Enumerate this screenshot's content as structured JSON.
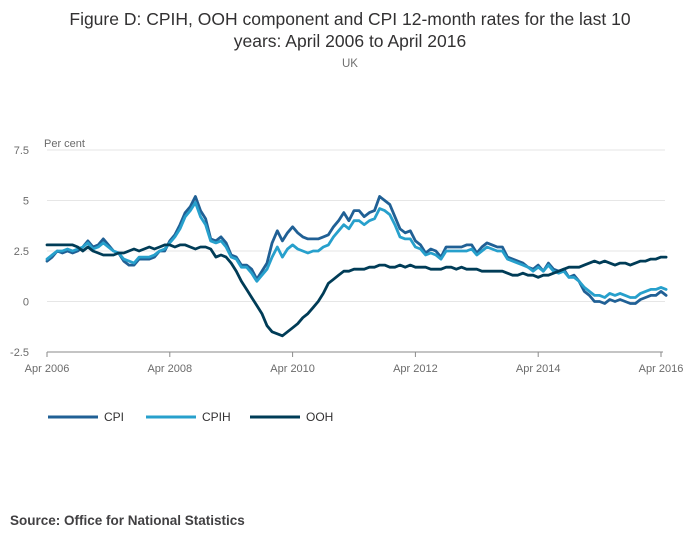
{
  "page": {
    "title_line1": "Figure D: CPIH, OOH component and CPI 12-month rates for the last 10",
    "title_line2": "years: April 2006 to April 2016",
    "subtitle": "UK",
    "source": "Source: Office for National Statistics"
  },
  "chart_data": {
    "type": "line",
    "title": "Figure D: CPIH, OOH component and CPI 12-month rates for the last 10 years: April 2006 to April 2016",
    "subtitle": "UK",
    "ylabel": "Per cent",
    "xlabel": "",
    "ylim": [
      -2.5,
      7.5
    ],
    "xlim": [
      "2006-04",
      "2016-04"
    ],
    "y_ticks": [
      -2.5,
      0,
      2.5,
      5,
      7.5
    ],
    "y_tick_labels": [
      "-2.5",
      "0",
      "2.5",
      "5",
      "7.5"
    ],
    "x_ticks": [
      "2006-04",
      "2008-04",
      "2010-04",
      "2012-04",
      "2014-04",
      "2016-04"
    ],
    "x_tick_labels": [
      "Apr 2006",
      "Apr 2008",
      "Apr 2010",
      "Apr 2012",
      "Apr 2014",
      "Apr 2016"
    ],
    "grid": "horizontal",
    "legend_position": "bottom-left",
    "start_month": "2006-04",
    "series": [
      {
        "name": "CPI",
        "color": "#206095",
        "values": [
          2.0,
          2.2,
          2.5,
          2.4,
          2.5,
          2.4,
          2.5,
          2.7,
          3.0,
          2.7,
          2.8,
          3.1,
          2.8,
          2.5,
          2.4,
          2.0,
          1.8,
          1.8,
          2.1,
          2.1,
          2.1,
          2.2,
          2.5,
          2.5,
          3.0,
          3.3,
          3.8,
          4.4,
          4.7,
          5.2,
          4.5,
          4.1,
          3.1,
          3.0,
          3.2,
          2.9,
          2.3,
          2.2,
          1.8,
          1.8,
          1.6,
          1.1,
          1.5,
          1.9,
          2.9,
          3.5,
          3.0,
          3.4,
          3.7,
          3.4,
          3.2,
          3.1,
          3.1,
          3.1,
          3.2,
          3.3,
          3.7,
          4.0,
          4.4,
          4.0,
          4.5,
          4.5,
          4.2,
          4.4,
          4.5,
          5.2,
          5.0,
          4.8,
          4.2,
          3.6,
          3.4,
          3.5,
          3.0,
          2.8,
          2.4,
          2.6,
          2.5,
          2.2,
          2.7,
          2.7,
          2.7,
          2.7,
          2.8,
          2.8,
          2.4,
          2.7,
          2.9,
          2.8,
          2.7,
          2.7,
          2.2,
          2.1,
          2.0,
          1.9,
          1.7,
          1.6,
          1.8,
          1.5,
          1.9,
          1.6,
          1.5,
          1.6,
          1.2,
          1.3,
          1.0,
          0.5,
          0.3,
          0.0,
          0.0,
          -0.1,
          0.1,
          0.0,
          0.1,
          0.0,
          -0.1,
          -0.1,
          0.1,
          0.2,
          0.3,
          0.3,
          0.5,
          0.3
        ]
      },
      {
        "name": "CPIH",
        "color": "#27a0cc",
        "values": [
          2.1,
          2.3,
          2.5,
          2.5,
          2.6,
          2.5,
          2.6,
          2.7,
          2.9,
          2.6,
          2.7,
          2.9,
          2.7,
          2.5,
          2.4,
          2.1,
          2.0,
          1.9,
          2.2,
          2.2,
          2.2,
          2.3,
          2.5,
          2.6,
          2.9,
          3.2,
          3.6,
          4.2,
          4.5,
          4.9,
          4.2,
          3.8,
          3.0,
          2.9,
          3.0,
          2.7,
          2.2,
          2.1,
          1.7,
          1.7,
          1.4,
          1.0,
          1.3,
          1.6,
          2.2,
          2.7,
          2.2,
          2.6,
          2.8,
          2.6,
          2.5,
          2.4,
          2.5,
          2.5,
          2.7,
          2.8,
          3.2,
          3.5,
          3.8,
          3.6,
          4.0,
          4.0,
          3.8,
          4.0,
          4.1,
          4.6,
          4.5,
          4.3,
          3.8,
          3.2,
          3.1,
          3.1,
          2.7,
          2.6,
          2.3,
          2.4,
          2.3,
          2.1,
          2.5,
          2.5,
          2.5,
          2.5,
          2.5,
          2.6,
          2.3,
          2.5,
          2.7,
          2.6,
          2.5,
          2.5,
          2.1,
          2.0,
          1.9,
          1.8,
          1.7,
          1.5,
          1.7,
          1.5,
          1.8,
          1.5,
          1.4,
          1.5,
          1.2,
          1.2,
          1.0,
          0.7,
          0.5,
          0.3,
          0.3,
          0.2,
          0.4,
          0.3,
          0.4,
          0.3,
          0.2,
          0.2,
          0.4,
          0.5,
          0.6,
          0.6,
          0.7,
          0.6
        ]
      },
      {
        "name": "OOH",
        "color": "#003c57",
        "values": [
          2.8,
          2.8,
          2.8,
          2.8,
          2.8,
          2.8,
          2.7,
          2.5,
          2.7,
          2.5,
          2.4,
          2.3,
          2.3,
          2.3,
          2.4,
          2.4,
          2.5,
          2.6,
          2.5,
          2.6,
          2.7,
          2.6,
          2.7,
          2.8,
          2.8,
          2.7,
          2.8,
          2.8,
          2.7,
          2.6,
          2.7,
          2.7,
          2.6,
          2.2,
          2.3,
          2.2,
          1.9,
          1.5,
          1.0,
          0.6,
          0.2,
          -0.2,
          -0.6,
          -1.2,
          -1.5,
          -1.6,
          -1.7,
          -1.5,
          -1.3,
          -1.1,
          -0.8,
          -0.6,
          -0.3,
          0.0,
          0.4,
          0.9,
          1.1,
          1.3,
          1.5,
          1.5,
          1.6,
          1.6,
          1.6,
          1.7,
          1.7,
          1.8,
          1.8,
          1.7,
          1.7,
          1.8,
          1.7,
          1.8,
          1.7,
          1.7,
          1.7,
          1.6,
          1.6,
          1.6,
          1.7,
          1.7,
          1.6,
          1.7,
          1.6,
          1.6,
          1.6,
          1.5,
          1.5,
          1.5,
          1.5,
          1.5,
          1.4,
          1.3,
          1.3,
          1.4,
          1.3,
          1.3,
          1.2,
          1.3,
          1.3,
          1.4,
          1.5,
          1.6,
          1.7,
          1.7,
          1.7,
          1.8,
          1.9,
          2.0,
          1.9,
          2.0,
          1.9,
          1.8,
          1.9,
          1.9,
          1.8,
          1.9,
          2.0,
          2.0,
          2.1,
          2.1,
          2.2,
          2.2
        ]
      }
    ]
  }
}
